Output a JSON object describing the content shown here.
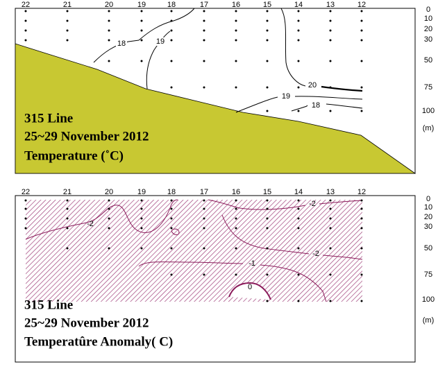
{
  "stations": [
    "22",
    "21",
    "20",
    "19",
    "18",
    "17",
    "16",
    "15",
    "14",
    "13",
    "12"
  ],
  "depths": [
    "0",
    "10",
    "20",
    "30",
    "50",
    "75",
    "100"
  ],
  "depth_unit": "(m)",
  "panels": [
    {
      "title_lines": [
        "315 Line",
        "25~29 November 2012",
        "Temperature (˚C)"
      ],
      "contour_labels": [
        "18",
        "19",
        "20",
        "19",
        "18"
      ]
    },
    {
      "title_lines": [
        "315 Line",
        "25~29 November 2012",
        "Temperatûre Anomaly( C)"
      ],
      "contour_labels": [
        "-2",
        "-2",
        "-2",
        "-1",
        "0"
      ]
    }
  ]
}
